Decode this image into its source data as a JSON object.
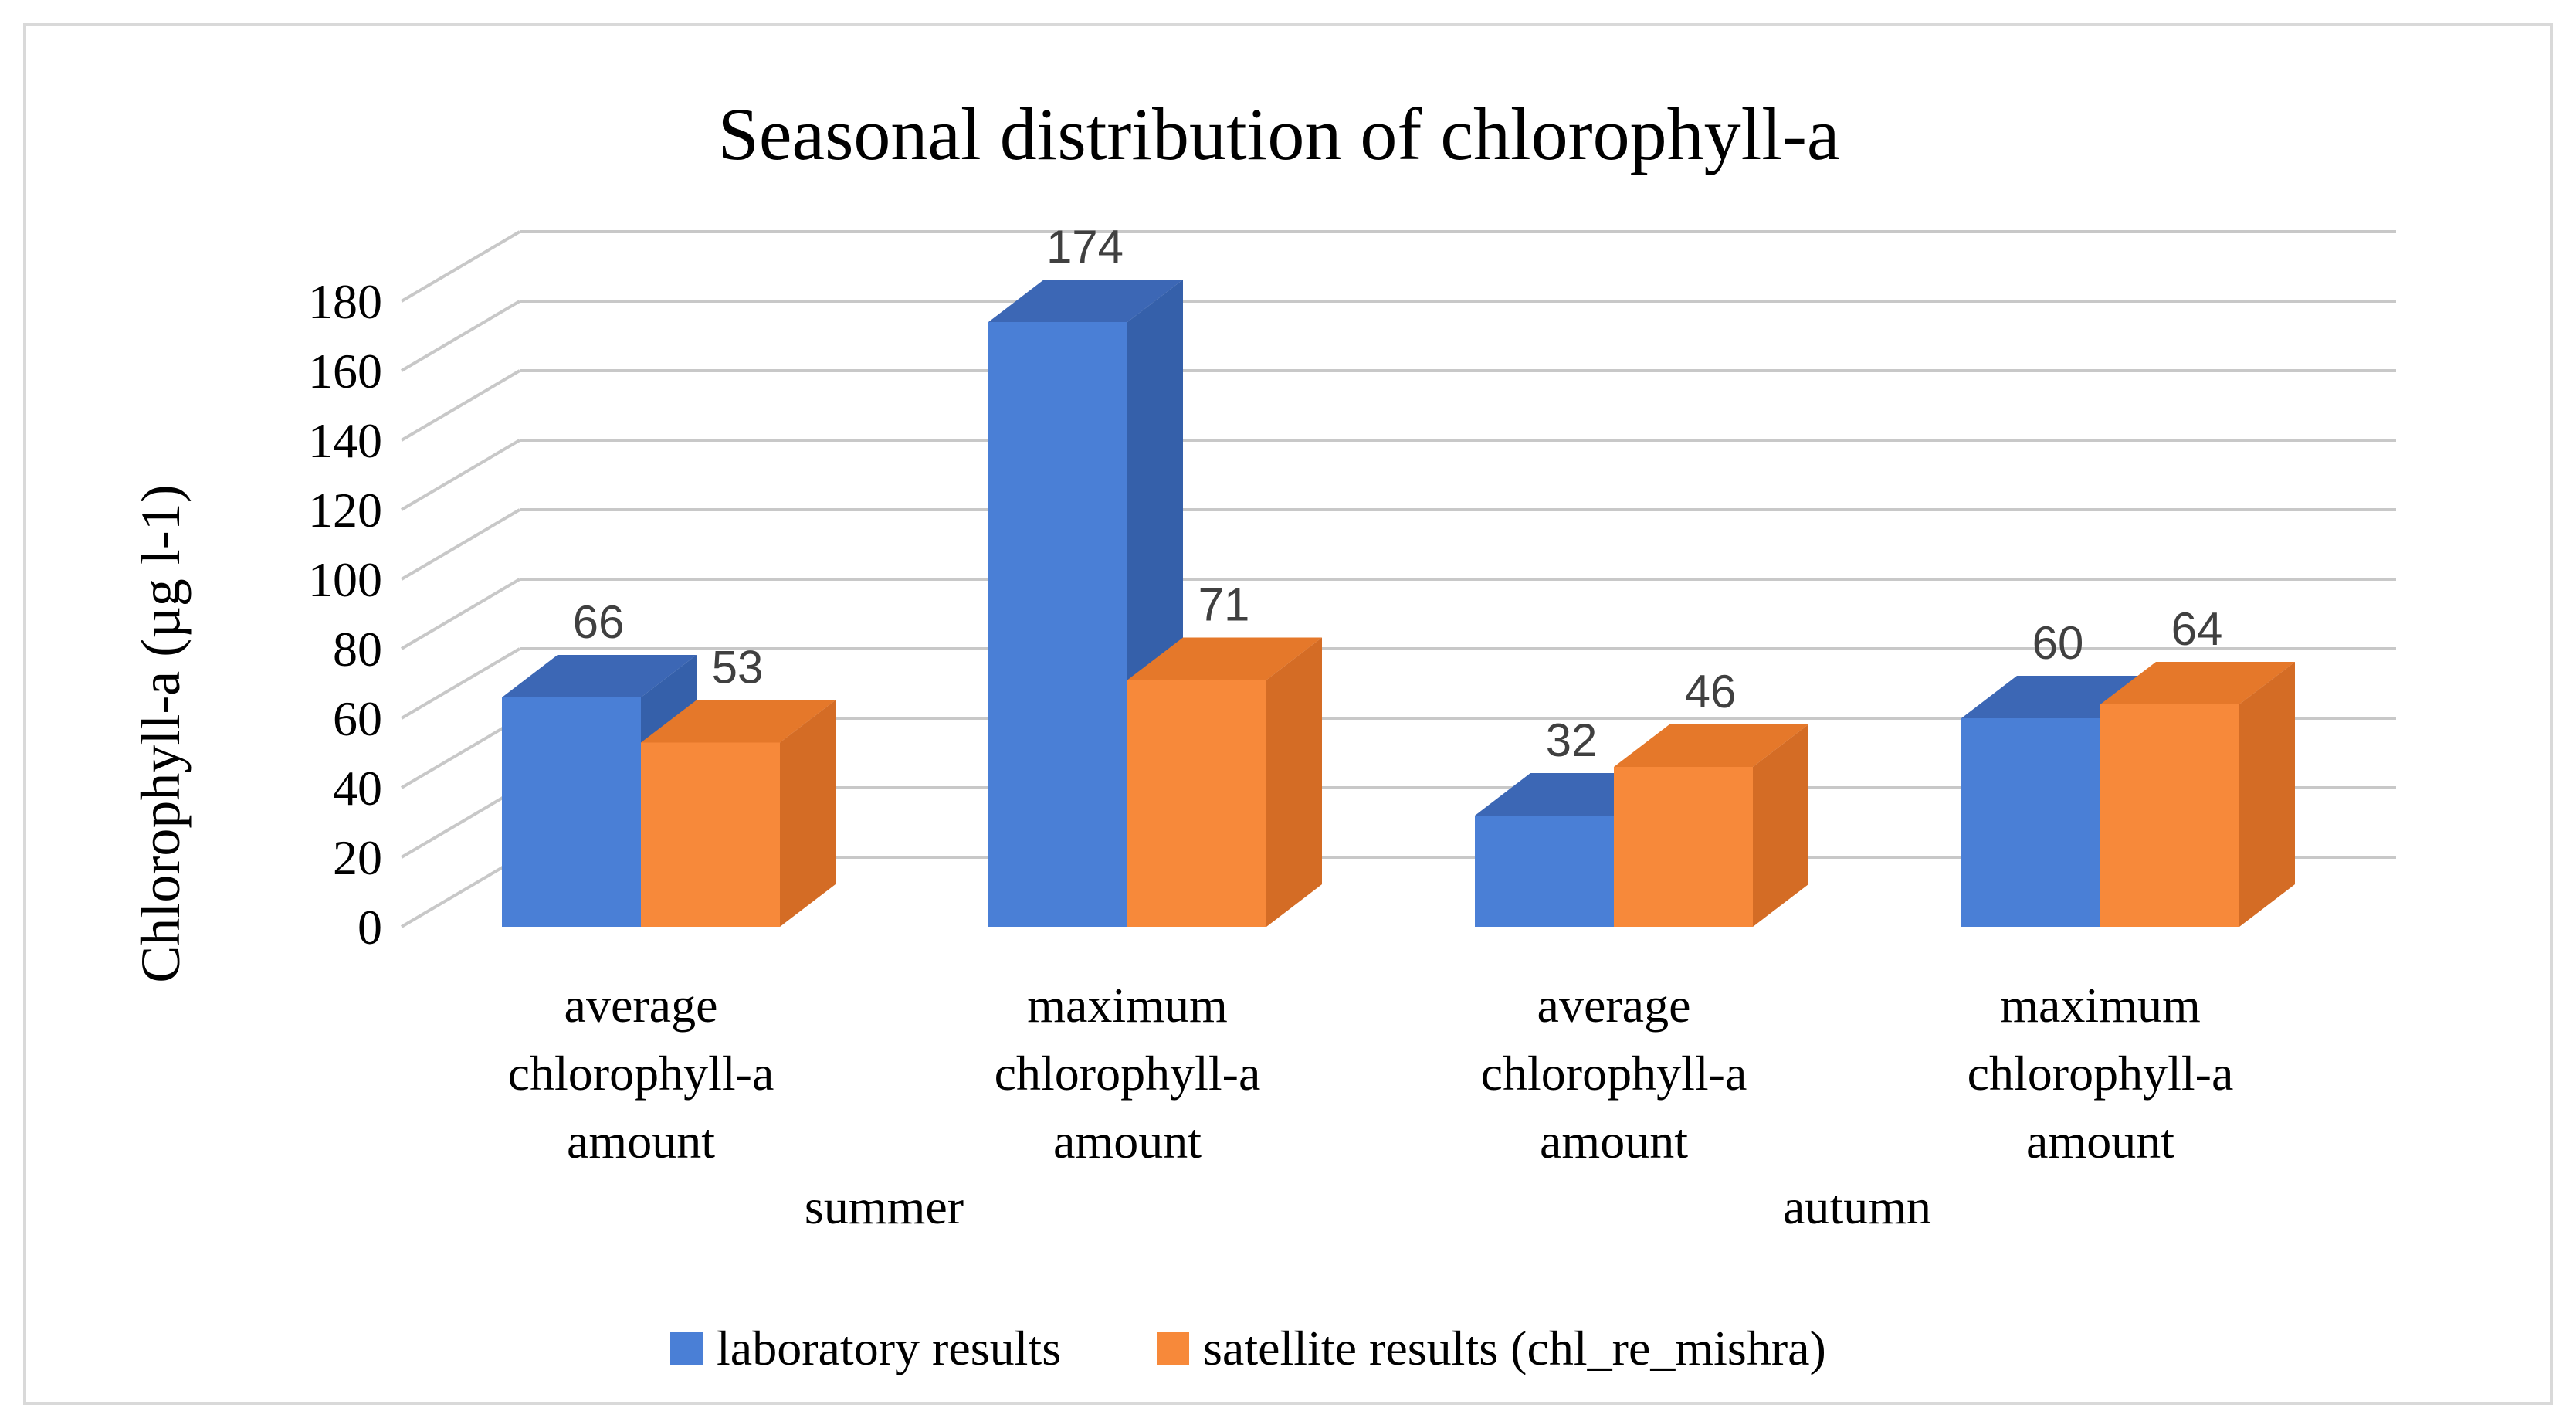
{
  "chart_data": {
    "type": "bar",
    "title": "Seasonal distribution of chlorophyll-a",
    "ylabel": "Chlorophyll-a (µg l-1)",
    "xlabel": "",
    "ylim": [
      0,
      180
    ],
    "y_ticks": [
      0,
      20,
      40,
      60,
      80,
      100,
      120,
      140,
      160,
      180
    ],
    "grid": true,
    "three_d": true,
    "groups": [
      {
        "label": "summer",
        "categories": [
          0,
          1
        ]
      },
      {
        "label": "autumn",
        "categories": [
          2,
          3
        ]
      }
    ],
    "categories": [
      [
        "average",
        "chlorophyll-a",
        "amount"
      ],
      [
        "maximum",
        "chlorophyll-a",
        "amount"
      ],
      [
        "average",
        "chlorophyll-a",
        "amount"
      ],
      [
        "maximum",
        "chlorophyll-a",
        "amount"
      ]
    ],
    "series": [
      {
        "name": "laboratory results",
        "values": [
          66,
          174,
          32,
          60
        ],
        "color": "#4A7FD6",
        "top_color": "#3C67B5",
        "side_color": "#3560AA"
      },
      {
        "name": "satellite results (chl_re_mishra)",
        "values": [
          53,
          71,
          46,
          64
        ],
        "color": "#F7893A",
        "top_color": "#E5782A",
        "side_color": "#D46C25"
      }
    ],
    "legend_position": "bottom"
  },
  "colors": {
    "grid": "#c8c8c8",
    "frame": "#d9d9d9",
    "label_text": "#404040",
    "axis_text": "#000000"
  }
}
